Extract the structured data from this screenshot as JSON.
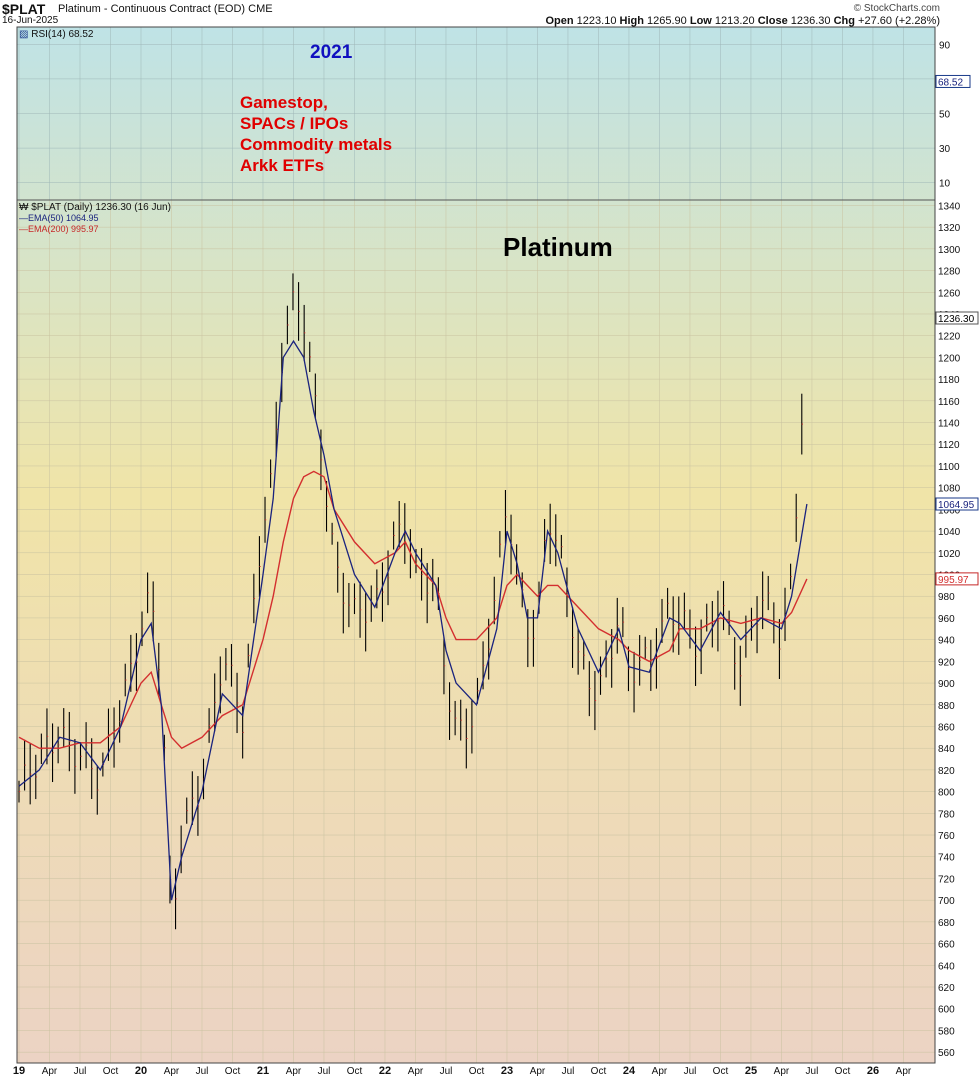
{
  "header": {
    "symbol": "$PLAT",
    "description": "Platinum - Continuous Contract (EOD)",
    "exchange": "CME",
    "date": "16-Jun-2025",
    "brand": "© StockCharts.com",
    "open_label": "Open",
    "open": "1223.10",
    "high_label": "High",
    "high": "1265.90",
    "low_label": "Low",
    "low": "1213.20",
    "close_label": "Close",
    "close": "1236.30",
    "chg_label": "Chg",
    "chg": "+27.60 (+2.28%)"
  },
  "legend": {
    "rsi": "RSI(14) 68.52",
    "price": "$PLAT (Daily) 1236.30 (16 Jun)",
    "ema50": "EMA(50) 1064.95",
    "ema200": "EMA(200) 995.97"
  },
  "annotations": {
    "year": "2021",
    "lines": [
      "Gamestop,",
      "SPACs / IPOs",
      "Commodity metals",
      "Arkk ETFs"
    ],
    "title": "Platinum"
  },
  "colors": {
    "ema50": "#1a237e",
    "ema200": "#d32f2f",
    "candle": "#000000",
    "annotation_red": "#e00000",
    "annotation_blue": "#1010c0",
    "tag_border_blue": "#1a3a8a",
    "tag_border_red": "#c62828"
  },
  "chart_data": {
    "type": "line",
    "panels": [
      {
        "name": "RSI",
        "series": [
          {
            "name": "RSI(14)",
            "last": 68.52
          }
        ],
        "yticks": [
          10,
          30,
          50,
          70,
          90
        ],
        "ylim": [
          0,
          100
        ],
        "last_value_tag": "68.52"
      },
      {
        "name": "Price",
        "x_tick_labels": [
          "19",
          "Apr",
          "Jul",
          "Oct",
          "20",
          "Apr",
          "Jul",
          "Oct",
          "21",
          "Apr",
          "Jul",
          "Oct",
          "22",
          "Apr",
          "Jul",
          "Oct",
          "23",
          "Apr",
          "Jul",
          "Oct",
          "24",
          "Apr",
          "Jul",
          "Oct",
          "25",
          "Apr",
          "Jul",
          "Oct",
          "26",
          "Apr"
        ],
        "ylim": [
          550,
          1345
        ],
        "yticks": [
          560,
          580,
          600,
          620,
          640,
          660,
          680,
          700,
          720,
          740,
          760,
          780,
          800,
          820,
          840,
          860,
          880,
          900,
          920,
          940,
          960,
          980,
          1000,
          1020,
          1040,
          1060,
          1080,
          1100,
          1120,
          1140,
          1160,
          1180,
          1200,
          1220,
          1240,
          1260,
          1280,
          1300,
          1320,
          1340
        ],
        "last_value_tags": [
          "1236.30",
          "1064.95",
          "995.97"
        ],
        "x": [
          "2019-01",
          "2019-03",
          "2019-05",
          "2019-07",
          "2019-09",
          "2019-11",
          "2020-01",
          "2020-02",
          "2020-03",
          "2020-04",
          "2020-05",
          "2020-07",
          "2020-09",
          "2020-11",
          "2021-01",
          "2021-02",
          "2021-03",
          "2021-04",
          "2021-05",
          "2021-06",
          "2021-07",
          "2021-08",
          "2021-10",
          "2021-12",
          "2022-02",
          "2022-03",
          "2022-04",
          "2022-06",
          "2022-07",
          "2022-08",
          "2022-10",
          "2022-12",
          "2023-01",
          "2023-02",
          "2023-03",
          "2023-04",
          "2023-05",
          "2023-06",
          "2023-08",
          "2023-10",
          "2023-12",
          "2024-01",
          "2024-03",
          "2024-05",
          "2024-06",
          "2024-08",
          "2024-10",
          "2024-12",
          "2025-02",
          "2025-04",
          "2025-05",
          "2025-06-16"
        ],
        "series": [
          {
            "name": "Close",
            "values": [
              800,
              820,
              860,
              840,
              800,
              880,
              960,
              980,
              900,
              660,
              760,
              820,
              920,
              860,
              1060,
              1100,
              1220,
              1240,
              1230,
              1160,
              1100,
              1020,
              960,
              960,
              1040,
              1060,
              1000,
              980,
              900,
              860,
              880,
              980,
              1060,
              1000,
              960,
              960,
              1060,
              1020,
              920,
              900,
              960,
              900,
              920,
              980,
              960,
              920,
              980,
              920,
              970,
              940,
              1000,
              1236.3
            ]
          },
          {
            "name": "EMA(50)",
            "values": [
              805,
              820,
              850,
              845,
              820,
              860,
              940,
              955,
              880,
              700,
              740,
              800,
              890,
              870,
              1000,
              1070,
              1200,
              1215,
              1200,
              1150,
              1110,
              1060,
              1000,
              970,
              1020,
              1040,
              1020,
              990,
              930,
              900,
              880,
              950,
              1040,
              1010,
              960,
              960,
              1040,
              1020,
              950,
              910,
              950,
              915,
              910,
              960,
              955,
              930,
              965,
              940,
              960,
              950,
              980,
              1064.95
            ]
          },
          {
            "name": "EMA(200)",
            "values": [
              850,
              840,
              840,
              845,
              845,
              860,
              900,
              910,
              880,
              850,
              840,
              850,
              870,
              880,
              940,
              980,
              1030,
              1070,
              1090,
              1095,
              1090,
              1060,
              1030,
              1010,
              1020,
              1030,
              1010,
              990,
              960,
              940,
              940,
              960,
              990,
              1000,
              990,
              980,
              990,
              990,
              970,
              950,
              940,
              930,
              920,
              930,
              950,
              950,
              960,
              955,
              960,
              955,
              965,
              995.97
            ]
          }
        ]
      }
    ]
  }
}
